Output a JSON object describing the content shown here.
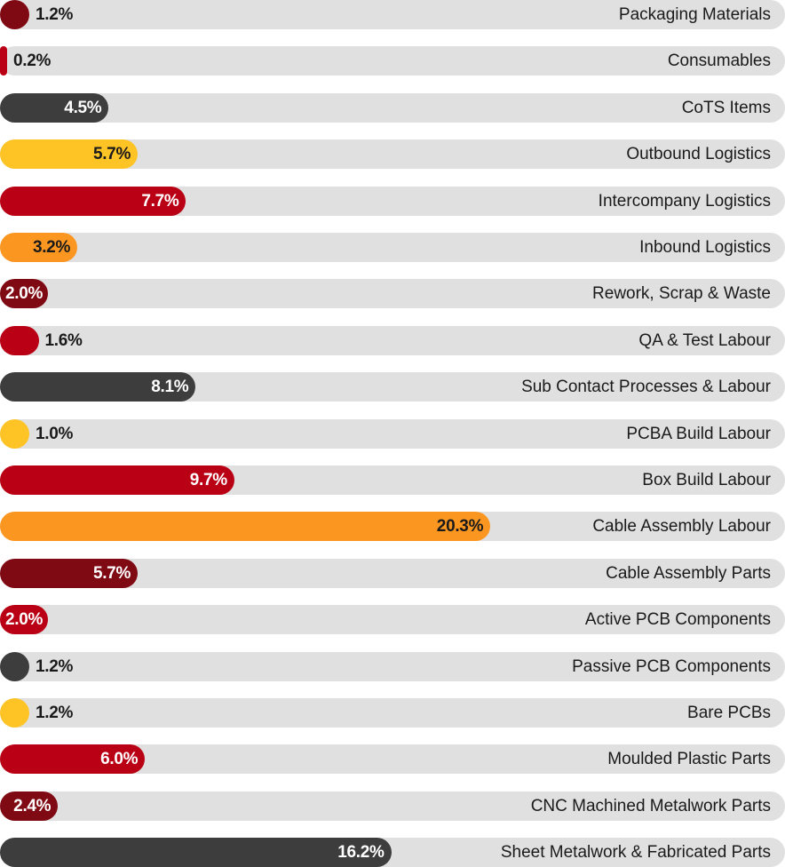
{
  "chart_data": {
    "type": "bar",
    "orientation": "horizontal",
    "value_format": "percent",
    "xlim": [
      0,
      32
    ],
    "grid": false,
    "legend": "none",
    "colors": {
      "dark_red": "#800a13",
      "red": "#b90014",
      "charcoal": "#3d3d3d",
      "yellow": "#fec325",
      "orange": "#fb9620",
      "track": "#e0e0e0"
    },
    "bars": [
      {
        "category": "Packaging Materials",
        "value": 1.2,
        "label": "1.2%",
        "color": "dark_red"
      },
      {
        "category": "Consumables",
        "value": 0.2,
        "label": "0.2%",
        "color": "red"
      },
      {
        "category": "CoTS Items",
        "value": 4.5,
        "label": "4.5%",
        "color": "charcoal"
      },
      {
        "category": "Outbound Logistics",
        "value": 5.7,
        "label": "5.7%",
        "color": "yellow"
      },
      {
        "category": "Intercompany Logistics",
        "value": 7.7,
        "label": "7.7%",
        "color": "red"
      },
      {
        "category": "Inbound Logistics",
        "value": 3.2,
        "label": "3.2%",
        "color": "orange"
      },
      {
        "category": "Rework, Scrap & Waste",
        "value": 2.0,
        "label": "2.0%",
        "color": "dark_red"
      },
      {
        "category": "QA & Test Labour",
        "value": 1.6,
        "label": "1.6%",
        "color": "red"
      },
      {
        "category": "Sub Contact Processes & Labour",
        "value": 8.1,
        "label": "8.1%",
        "color": "charcoal"
      },
      {
        "category": "PCBA Build Labour",
        "value": 1.0,
        "label": "1.0%",
        "color": "yellow"
      },
      {
        "category": "Box Build Labour",
        "value": 9.7,
        "label": "9.7%",
        "color": "red"
      },
      {
        "category": "Cable Assembly Labour",
        "value": 20.3,
        "label": "20.3%",
        "color": "orange"
      },
      {
        "category": "Cable Assembly Parts",
        "value": 5.7,
        "label": "5.7%",
        "color": "dark_red"
      },
      {
        "category": "Active PCB Components",
        "value": 2.0,
        "label": "2.0%",
        "color": "red"
      },
      {
        "category": "Passive PCB Components",
        "value": 1.2,
        "label": "1.2%",
        "color": "charcoal"
      },
      {
        "category": "Bare PCBs",
        "value": 1.2,
        "label": "1.2%",
        "color": "yellow"
      },
      {
        "category": "Moulded Plastic Parts",
        "value": 6.0,
        "label": "6.0%",
        "color": "red"
      },
      {
        "category": "CNC Machined Metalwork Parts",
        "value": 2.4,
        "label": "2.4%",
        "color": "dark_red"
      },
      {
        "category": "Sheet Metalwork & Fabricated Parts",
        "value": 16.2,
        "label": "16.2%",
        "color": "charcoal"
      }
    ]
  }
}
